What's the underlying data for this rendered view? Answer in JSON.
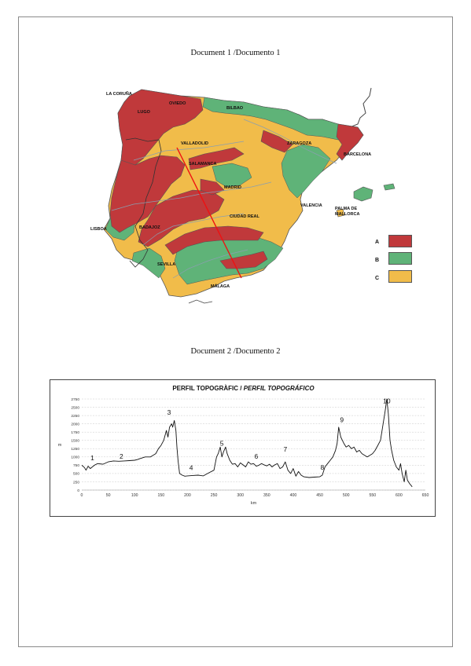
{
  "document1_caption": "Document 1 /Documento 1",
  "document2_caption": "Document 2 /Documento 2",
  "map": {
    "cities": [
      "LA CORUÑA",
      "LUGO",
      "OVIEDO",
      "BILBAO",
      "VALLADOLID",
      "ZARAGOZA",
      "BARCELONA",
      "SALAMANCA",
      "MADRID",
      "CIUDAD REAL",
      "VALENCIA",
      "PALMA DE MALLORCA",
      "LISBOA",
      "BADAJOZ",
      "SEVILLA",
      "MÁLAGA"
    ],
    "legend": [
      {
        "label": "A",
        "color": "#c0393b"
      },
      {
        "label": "B",
        "color": "#5fb378"
      },
      {
        "label": "C",
        "color": "#f1bc4a"
      }
    ],
    "colors": {
      "sea": "#ffffff",
      "border": "#555555",
      "transect": "#ee1111",
      "rivers": "#8a9fb0"
    }
  },
  "chart_data": {
    "type": "line",
    "title": "PERFIL TOPOGRÀFIC / ",
    "title_italic": "PERFIL TOPOGRÁFICO",
    "xlabel": "km",
    "ylabel": "m",
    "xlim": [
      0,
      650
    ],
    "ylim": [
      0,
      2750
    ],
    "xticks": [
      0,
      50,
      100,
      150,
      200,
      250,
      300,
      350,
      400,
      450,
      500,
      550,
      600,
      650
    ],
    "yticks": [
      0,
      250,
      500,
      750,
      1000,
      1250,
      1500,
      1750,
      2000,
      2250,
      2500,
      2750
    ],
    "grid": true,
    "series": [
      {
        "x": [
          0,
          5,
          8,
          12,
          16,
          20,
          25,
          30,
          40,
          50,
          60,
          70,
          80,
          90,
          100,
          105,
          110,
          120,
          130,
          140,
          145,
          150,
          155,
          160,
          163,
          166,
          170,
          172,
          175,
          178,
          180,
          182,
          185,
          190,
          195,
          200,
          210,
          220,
          230,
          240,
          250,
          255,
          258,
          262,
          265,
          268,
          272,
          275,
          280,
          285,
          290,
          295,
          300,
          305,
          310,
          315,
          320,
          325,
          330,
          335,
          340,
          345,
          350,
          355,
          360,
          365,
          370,
          375,
          380,
          385,
          390,
          395,
          400,
          405,
          410,
          415,
          420,
          430,
          440,
          450,
          455,
          460,
          465,
          470,
          475,
          480,
          483,
          486,
          490,
          493,
          496,
          500,
          505,
          510,
          515,
          520,
          525,
          530,
          535,
          540,
          545,
          550,
          555,
          560,
          565,
          568,
          571,
          574,
          577,
          580,
          583,
          586,
          590,
          595,
          600,
          603,
          606,
          610,
          613,
          616,
          620,
          625
        ],
        "y": [
          750,
          680,
          600,
          720,
          650,
          700,
          760,
          800,
          780,
          850,
          880,
          870,
          880,
          890,
          900,
          920,
          950,
          1000,
          1000,
          1100,
          1250,
          1350,
          1500,
          1800,
          1600,
          1900,
          2000,
          1900,
          2100,
          1800,
          1300,
          900,
          500,
          450,
          420,
          430,
          440,
          450,
          430,
          520,
          600,
          1000,
          1100,
          1300,
          1000,
          1150,
          1300,
          1100,
          900,
          780,
          800,
          700,
          820,
          760,
          700,
          850,
          780,
          800,
          720,
          750,
          800,
          760,
          730,
          780,
          700,
          760,
          800,
          650,
          700,
          850,
          600,
          500,
          650,
          420,
          560,
          450,
          400,
          380,
          390,
          400,
          450,
          700,
          800,
          900,
          1000,
          1200,
          1400,
          1900,
          1600,
          1500,
          1400,
          1300,
          1350,
          1250,
          1300,
          1150,
          1200,
          1100,
          1050,
          1000,
          1050,
          1100,
          1200,
          1350,
          1500,
          1800,
          2100,
          2400,
          2750,
          2300,
          1500,
          1200,
          900,
          700,
          600,
          800,
          500,
          250,
          600,
          300,
          200,
          100
        ]
      }
    ],
    "annotations": [
      {
        "text": "1",
        "x": 20,
        "y": 900
      },
      {
        "text": "2",
        "x": 75,
        "y": 950
      },
      {
        "text": "3",
        "x": 165,
        "y": 2270
      },
      {
        "text": "4",
        "x": 207,
        "y": 600
      },
      {
        "text": "5",
        "x": 265,
        "y": 1340
      },
      {
        "text": "6",
        "x": 330,
        "y": 950
      },
      {
        "text": "7",
        "x": 385,
        "y": 1160
      },
      {
        "text": "8",
        "x": 455,
        "y": 620
      },
      {
        "text": "9",
        "x": 492,
        "y": 2050
      },
      {
        "text": "10",
        "x": 577,
        "y": 2620
      }
    ]
  }
}
